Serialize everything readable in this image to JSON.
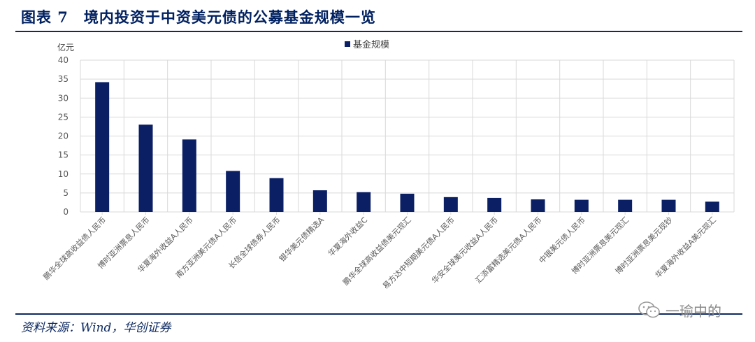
{
  "figure": {
    "title": "图表 7　境内投资于中资美元债的公募基金规模一览",
    "source": "资料来源：Wind，华创证券",
    "watermark": "一瑜中的"
  },
  "colors": {
    "bar": "#0b1f65",
    "rule": "#0f2b62",
    "grid": "#d9d9d9"
  },
  "chart_data": {
    "type": "bar",
    "unit_label": "亿元",
    "legend": "基金规模",
    "ylim": [
      0,
      40
    ],
    "yticks": [
      0,
      5,
      10,
      15,
      20,
      25,
      30,
      35,
      40
    ],
    "grid": true,
    "legend_position": "top-center",
    "categories": [
      "鹏华全球高收益债人民币",
      "博时亚洲票息人民币",
      "华夏海外收益A人民币",
      "南方亚洲美元债A人民币",
      "长信全球债券人民币",
      "银华美元债精选A",
      "华夏海外收益C",
      "鹏华全球高收益债美元现汇",
      "易方达中短期美元债A人民币",
      "华安全球美元收益A人民币",
      "汇添富精选美元债A人民币",
      "中银美元债人民币",
      "博时亚洲票息美元现汇",
      "博时亚洲票息美元现钞",
      "华夏海外收益A美元现汇"
    ],
    "series": [
      {
        "name": "基金规模",
        "values": [
          34.2,
          23.0,
          19.1,
          10.8,
          8.9,
          5.7,
          5.2,
          4.8,
          3.9,
          3.7,
          3.3,
          3.2,
          3.2,
          3.2,
          2.7
        ]
      }
    ]
  }
}
